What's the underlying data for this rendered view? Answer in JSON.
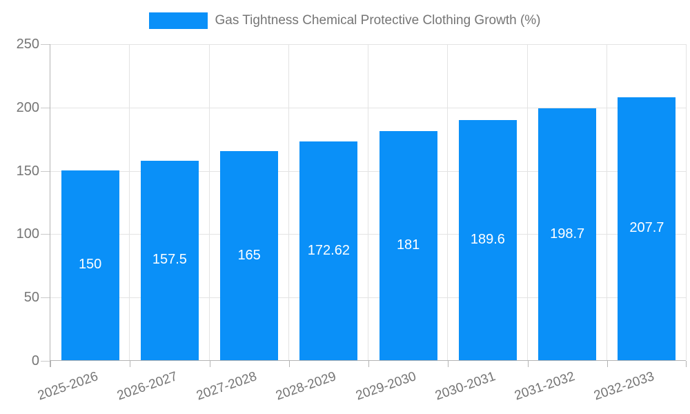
{
  "chart_data": {
    "type": "bar",
    "title": "Gas Tightness Chemical Protective Clothing Growth (%)",
    "categories": [
      "2025-2026",
      "2026-2027",
      "2027-2028",
      "2028-2029",
      "2029-2030",
      "2030-2031",
      "2031-2032",
      "2032-2033"
    ],
    "values": [
      150,
      157.5,
      165,
      172.62,
      181,
      189.6,
      198.7,
      207.7
    ],
    "value_labels": [
      "150",
      "157.5",
      "165",
      "172.62",
      "181",
      "189.6",
      "198.7",
      "207.7"
    ],
    "xlabel": "",
    "ylabel": "",
    "ylim": [
      0,
      250
    ],
    "yticks": [
      0,
      50,
      100,
      150,
      200,
      250
    ],
    "grid": true,
    "legend_position": "top-center",
    "colors": {
      "bar": "#0a90f8",
      "tick_label": "#757575",
      "axis_line": "#b3b3b3",
      "grid_line": "#e3e3e3",
      "value_label": "#ffffff",
      "legend_text": "#757575",
      "background": "#ffffff"
    }
  }
}
